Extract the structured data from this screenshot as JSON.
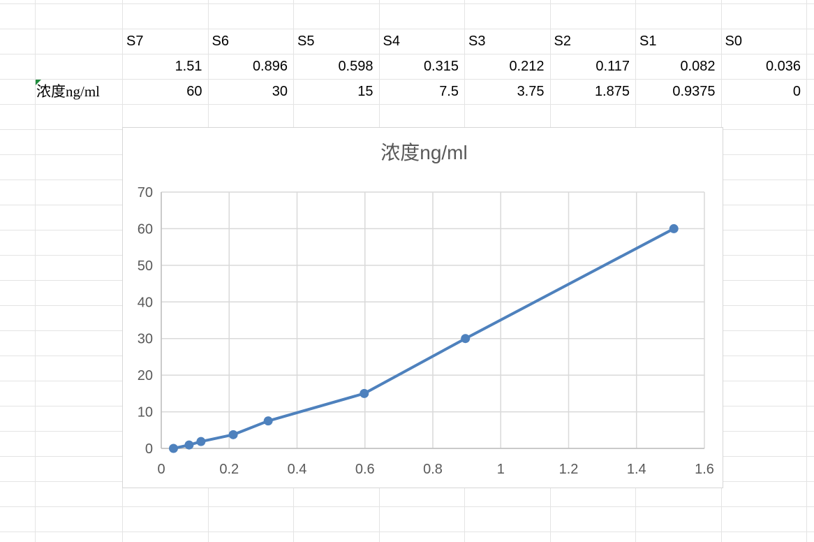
{
  "sheet": {
    "header_row": [
      "S7",
      "S6",
      "S5",
      "S4",
      "S3",
      "S2",
      "S1",
      "S0"
    ],
    "value_row": [
      "1.51",
      "0.896",
      "0.598",
      "0.315",
      "0.212",
      "0.117",
      "0.082",
      "0.036"
    ],
    "conc_row_label": "浓度ng/ml",
    "conc_row": [
      "60",
      "30",
      "15",
      "7.5",
      "3.75",
      "1.875",
      "0.9375",
      "0"
    ]
  },
  "chart_data": {
    "type": "line",
    "title": "浓度ng/ml",
    "x": [
      0.036,
      0.082,
      0.117,
      0.212,
      0.315,
      0.598,
      0.896,
      1.51
    ],
    "y": [
      0,
      0.9375,
      1.875,
      3.75,
      7.5,
      15,
      30,
      60
    ],
    "xlim": [
      0,
      1.6
    ],
    "ylim": [
      0,
      70
    ],
    "x_ticks": [
      "0",
      "0.2",
      "0.4",
      "0.6",
      "0.8",
      "1",
      "1.2",
      "1.4",
      "1.6"
    ],
    "y_ticks": [
      "0",
      "10",
      "20",
      "30",
      "40",
      "50",
      "60",
      "70"
    ],
    "grid": true,
    "legend": false,
    "marker": "circle"
  },
  "colors": {
    "series_blue": "#4e81bd",
    "axis_text_gray": "#595959",
    "chart_gridline": "#d9d9d9",
    "chart_axis_line": "#bfbfbf",
    "sheet_gridline": "#e4e4e4",
    "error_triangle_green": "#1f8b3c"
  }
}
